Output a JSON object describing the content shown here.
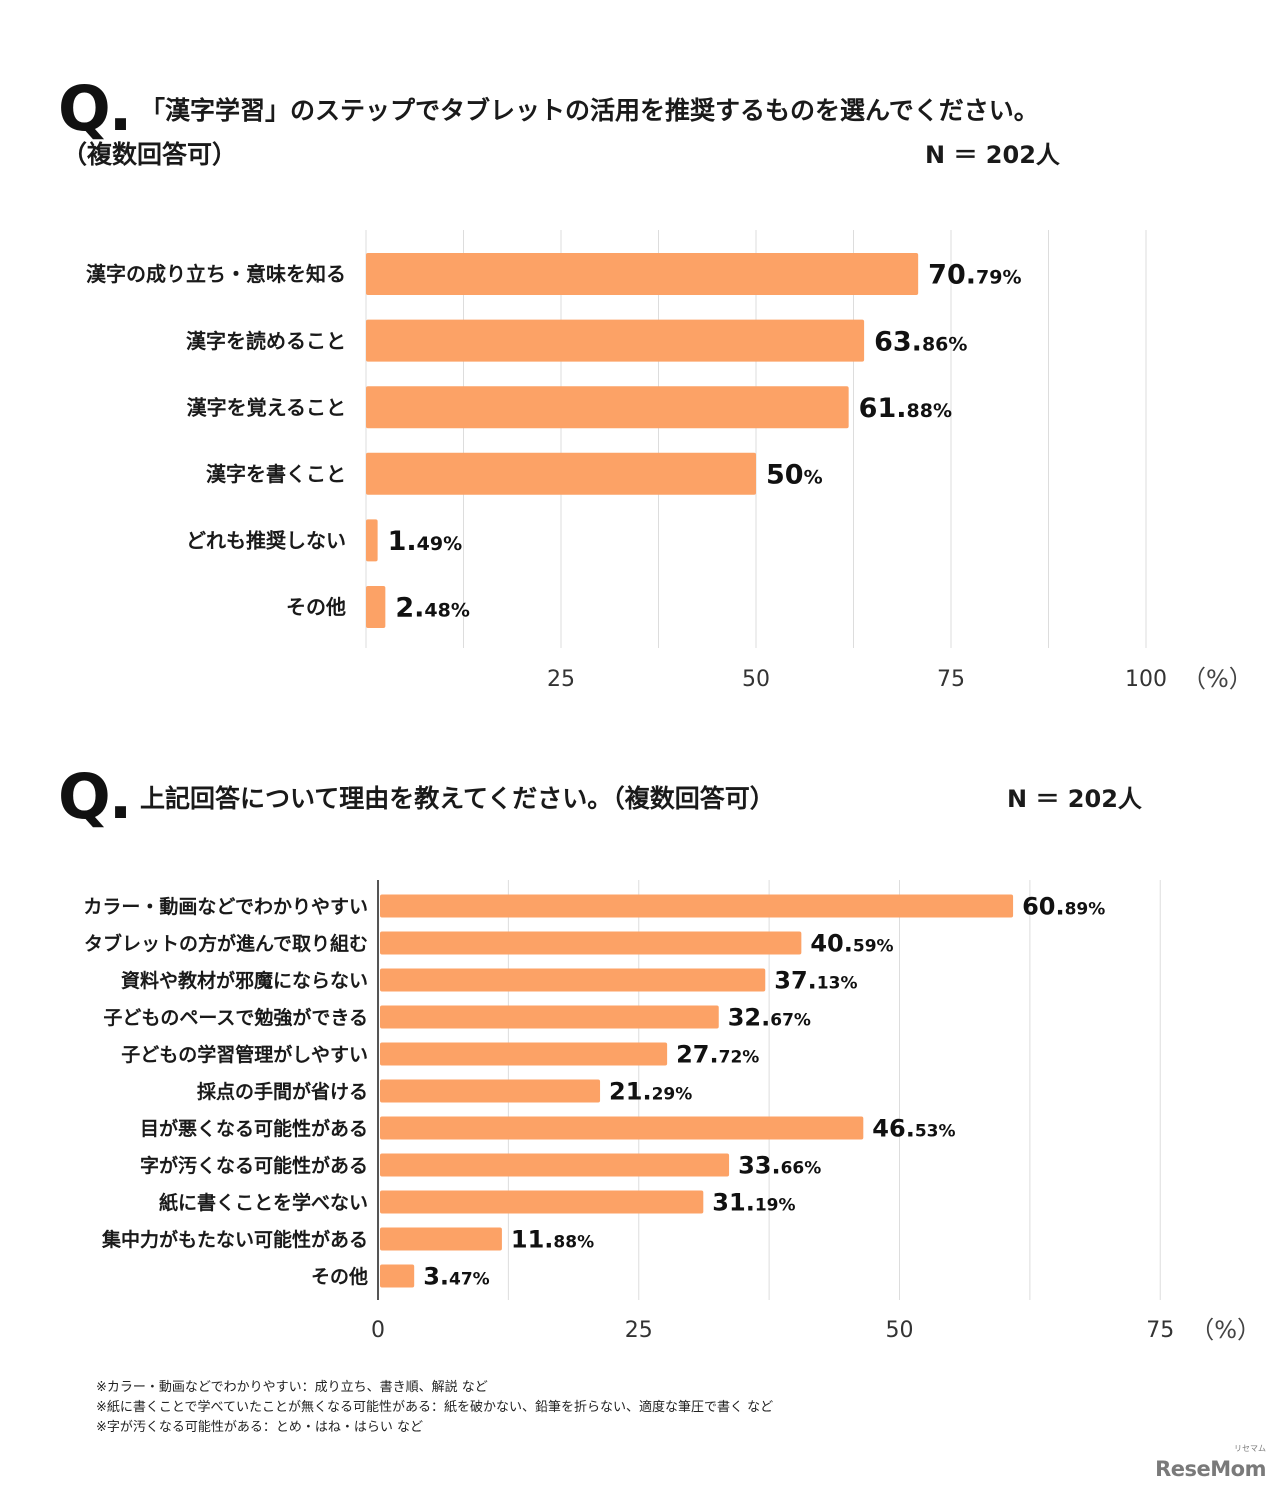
{
  "section1": {
    "q_mark": "Q.",
    "title": "「漢字学習」のステップでタブレットの活用を推奨するものを選んでください。",
    "subtitle": "（複数回答可）",
    "n_label": "N ＝ 202人"
  },
  "section2": {
    "q_mark": "Q.",
    "title": "上記回答について理由を教えてください。（複数回答可）",
    "n_label": "N ＝ 202人"
  },
  "chart_data": [
    {
      "type": "bar",
      "orientation": "horizontal",
      "title": "「漢字学習」のステップでタブレットの活用を推奨するものを選んでください。（複数回答可）",
      "xlabel": "（%）",
      "ylabel": "",
      "xlim": [
        0,
        100
      ],
      "xticks": [
        25,
        50,
        75,
        100
      ],
      "xtick_labels": [
        "25",
        "50",
        "75",
        "100"
      ],
      "grid": true,
      "grid_step": 12.5,
      "bar_color": "#FCA266",
      "categories": [
        "漢字の成り立ち・意味を知る",
        "漢字を読めること",
        "漢字を覚えること",
        "漢字を書くこと",
        "どれも推奨しない",
        "その他"
      ],
      "values": [
        70.79,
        63.86,
        61.88,
        50,
        1.49,
        2.48
      ],
      "value_labels": [
        {
          "int": "70.",
          "dec": "79%"
        },
        {
          "int": "63.",
          "dec": "86%"
        },
        {
          "int": "61.",
          "dec": "88%"
        },
        {
          "int": "50",
          "dec": "%"
        },
        {
          "int": "1.",
          "dec": "49%"
        },
        {
          "int": "2.",
          "dec": "48%"
        }
      ]
    },
    {
      "type": "bar",
      "orientation": "horizontal",
      "title": "上記回答について理由を教えてください。（複数回答可）",
      "xlabel": "（%）",
      "ylabel": "",
      "xlim": [
        0,
        75
      ],
      "xticks": [
        0,
        25,
        50,
        75
      ],
      "xtick_labels": [
        "0",
        "25",
        "50",
        "75"
      ],
      "grid": true,
      "grid_step": 12.5,
      "bar_color": "#FCA266",
      "categories": [
        "カラー・動画などでわかりやすい",
        "タブレットの方が進んで取り組む",
        "資料や教材が邪魔にならない",
        "子どものペースで勉強ができる",
        "子どもの学習管理がしやすい",
        "採点の手間が省ける",
        "目が悪くなる可能性がある",
        "字が汚くなる可能性がある",
        "紙に書くことを学べない",
        "集中力がもたない可能性がある",
        "その他"
      ],
      "values": [
        60.89,
        40.59,
        37.13,
        32.67,
        27.72,
        21.29,
        46.53,
        33.66,
        31.19,
        11.88,
        3.47
      ],
      "value_labels": [
        {
          "int": "60.",
          "dec": "89%"
        },
        {
          "int": "40.",
          "dec": "59%"
        },
        {
          "int": "37.",
          "dec": "13%"
        },
        {
          "int": "32.",
          "dec": "67%"
        },
        {
          "int": "27.",
          "dec": "72%"
        },
        {
          "int": "21.",
          "dec": "29%"
        },
        {
          "int": "46.",
          "dec": "53%"
        },
        {
          "int": "33.",
          "dec": "66%"
        },
        {
          "int": "31.",
          "dec": "19%"
        },
        {
          "int": "11.",
          "dec": "88%"
        },
        {
          "int": "3.",
          "dec": "47%"
        }
      ]
    }
  ],
  "footnotes": [
    "※カラー・動画などでわかりやすい：成り立ち、書き順、解説 など",
    "※紙に書くことで学べていたことが無くなる可能性がある：紙を破かない、鉛筆を折らない、適度な筆圧で書く など",
    "※字が汚くなる可能性がある：とめ・はね・はらい など"
  ],
  "logo": {
    "text": "ReseMom",
    "ruby": "リセマム"
  }
}
